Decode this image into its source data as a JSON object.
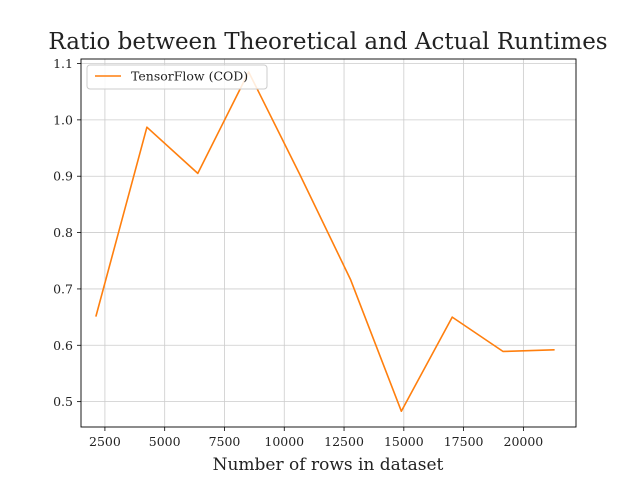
{
  "chart_data": {
    "type": "line",
    "title": "Ratio between Theoretical and Actual Runtimes",
    "xlabel": "Number of rows in dataset",
    "ylabel": "",
    "xlim": [
      1500,
      22200
    ],
    "ylim": [
      0.455,
      1.108
    ],
    "xticks": [
      2500,
      5000,
      7500,
      10000,
      12500,
      15000,
      17500,
      20000
    ],
    "yticks": [
      0.5,
      0.6,
      0.7,
      0.8,
      0.9,
      1.0,
      1.1
    ],
    "ytick_labels": [
      "0.5",
      "0.6",
      "0.7",
      "0.8",
      "0.9",
      "1.0",
      "1.1"
    ],
    "grid": true,
    "legend_position": "upper-left",
    "series": [
      {
        "name": "TensorFlow (COD)",
        "color": "#ff7f0e",
        "x": [
          2128,
          4256,
          6384,
          8512,
          10640,
          12768,
          14896,
          17024,
          19152,
          21280
        ],
        "y": [
          0.652,
          0.987,
          0.905,
          1.085,
          0.904,
          0.717,
          0.483,
          0.65,
          0.589,
          0.592
        ]
      }
    ]
  }
}
